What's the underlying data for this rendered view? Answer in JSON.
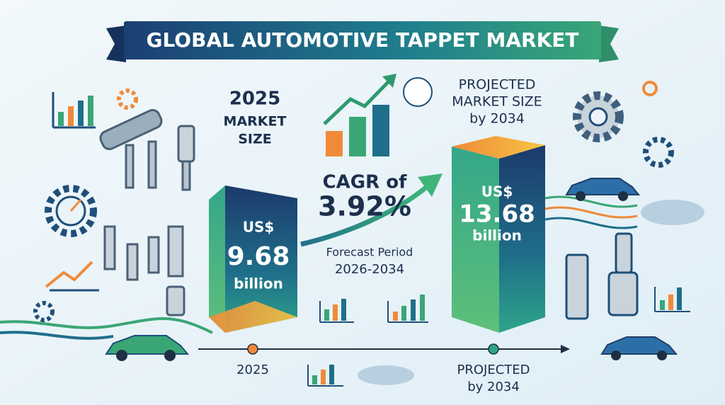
{
  "header": {
    "title": "GLOBAL AUTOMOTIVE TAPPET MARKET"
  },
  "current": {
    "heading": [
      "2025",
      "MARKET",
      "SIZE"
    ],
    "value": [
      "US$",
      "9.68",
      "billion"
    ]
  },
  "growth": {
    "label": "CAGR of",
    "rate": "3.92%",
    "period_label": "Forecast Period",
    "period": "2026-2034"
  },
  "projected": {
    "heading": [
      "PROJECTED",
      "MARKET SIZE",
      "by 2034"
    ],
    "value": [
      "US$",
      "13.68",
      "billion"
    ]
  },
  "timeline": {
    "start": "2025",
    "end": [
      "PROJECTED",
      "by 2034"
    ]
  }
}
